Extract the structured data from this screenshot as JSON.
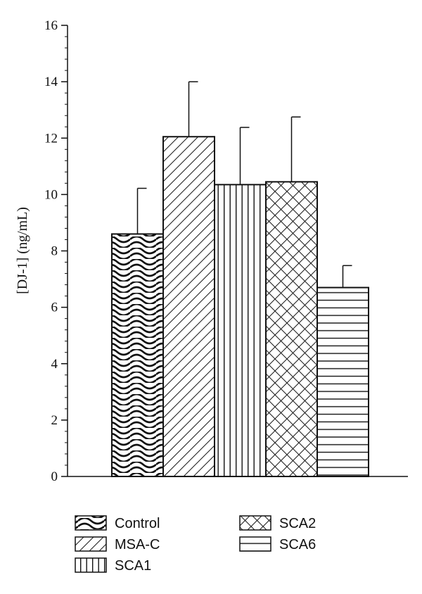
{
  "chart_data": {
    "type": "bar",
    "ylabel": "[DJ-1] (ng/mL)",
    "xlabel": "",
    "ylim": [
      0,
      16
    ],
    "yticks": [
      0,
      2,
      4,
      6,
      8,
      10,
      12,
      14,
      16
    ],
    "y_minor_step": 0.4,
    "grid": false,
    "legend_position": "bottom",
    "categories": [
      "Control",
      "MSA-C",
      "SCA1",
      "SCA2",
      "SCA6"
    ],
    "values": [
      8.6,
      12.05,
      10.35,
      10.45,
      6.7
    ],
    "error_plus": [
      1.62,
      1.95,
      2.03,
      2.3,
      0.78
    ],
    "patterns": [
      "wave",
      "diagonal",
      "vertical",
      "crosshatch",
      "horizontal"
    ]
  }
}
